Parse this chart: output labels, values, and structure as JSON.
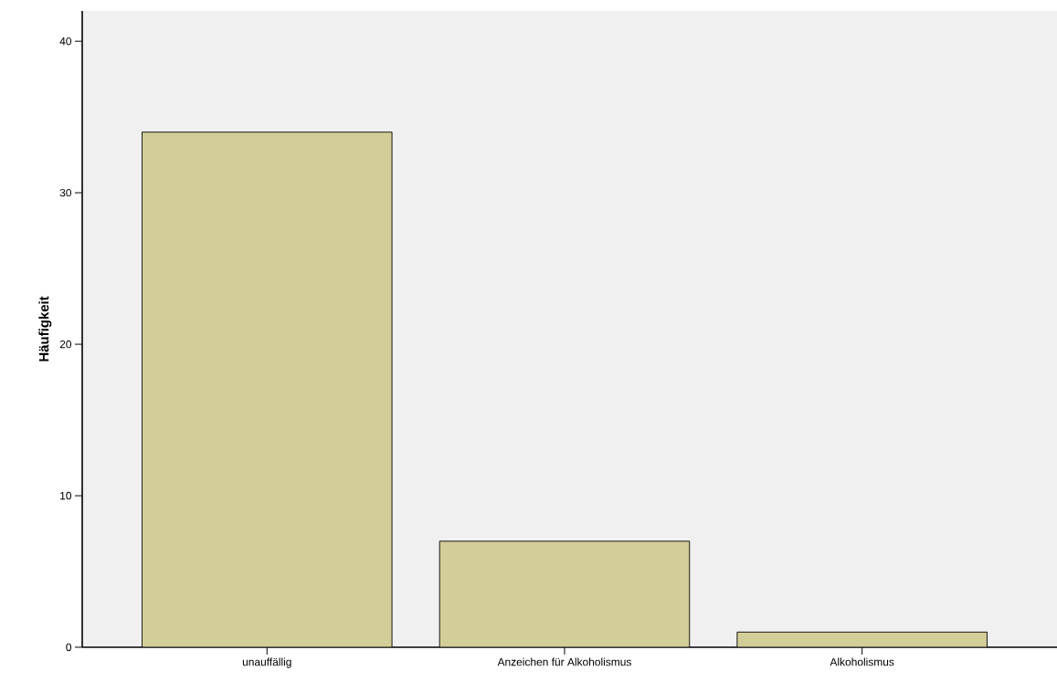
{
  "chart_data": {
    "type": "bar",
    "ylabel": "Häufigkeit",
    "categories": [
      "unauffällig",
      "Anzeichen für Alkoholismus",
      "Alkoholismus"
    ],
    "values": [
      34,
      7,
      1
    ],
    "color": "#d3ce97",
    "ylim": [
      0,
      42
    ],
    "yticks": [
      0,
      10,
      20,
      30,
      40
    ],
    "grid": false
  }
}
